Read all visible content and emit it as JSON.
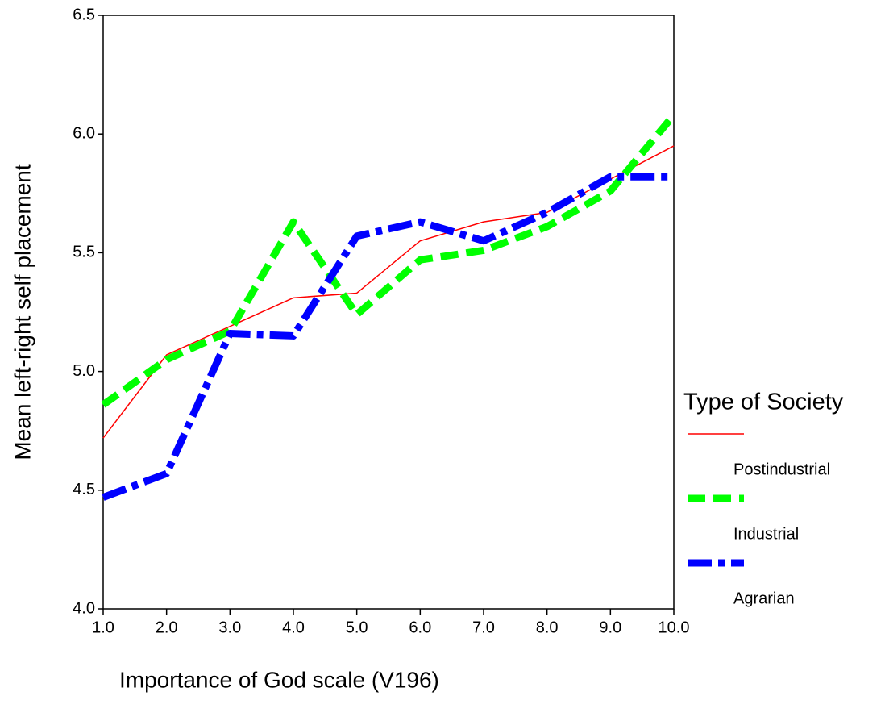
{
  "chart_data": {
    "type": "line",
    "x_label": "Importance of God scale (V196)",
    "y_label": "Mean left-right self placement",
    "x": [
      1,
      2,
      3,
      4,
      5,
      6,
      7,
      8,
      9,
      10
    ],
    "series": [
      {
        "name": "Postindustrial",
        "color": "#ff0000",
        "line_style": "solid",
        "values": [
          4.72,
          5.07,
          5.19,
          5.31,
          5.33,
          5.55,
          5.63,
          5.67,
          5.81,
          5.95
        ]
      },
      {
        "name": "Industrial",
        "color": "#00ff00",
        "line_style": "dashed",
        "values": [
          4.86,
          5.05,
          5.17,
          5.63,
          5.24,
          5.47,
          5.51,
          5.61,
          5.76,
          6.08
        ]
      },
      {
        "name": "Agrarian",
        "color": "#0000ff",
        "line_style": "dashdot",
        "values": [
          4.47,
          4.57,
          5.16,
          5.15,
          5.57,
          5.63,
          5.55,
          5.67,
          5.82,
          5.82
        ]
      }
    ],
    "legend_title": "Type of Society",
    "legend_position": "right",
    "xlim": [
      1,
      10
    ],
    "xticks": [
      {
        "value": 1,
        "label": "1.0"
      },
      {
        "value": 2,
        "label": "2.0"
      },
      {
        "value": 3,
        "label": "3.0"
      },
      {
        "value": 4,
        "label": "4.0"
      },
      {
        "value": 5,
        "label": "5.0"
      },
      {
        "value": 6,
        "label": "6.0"
      },
      {
        "value": 7,
        "label": "7.0"
      },
      {
        "value": 8,
        "label": "8.0"
      },
      {
        "value": 9,
        "label": "9.0"
      },
      {
        "value": 10,
        "label": "10.0"
      }
    ],
    "ylim": [
      4,
      6.5
    ],
    "yticks": [
      {
        "value": 4,
        "label": "4.0"
      },
      4.5,
      {
        "value": 5,
        "label": "5.0"
      },
      5.5,
      {
        "value": 6,
        "label": "6.0"
      },
      6.5
    ],
    "grid": false
  }
}
